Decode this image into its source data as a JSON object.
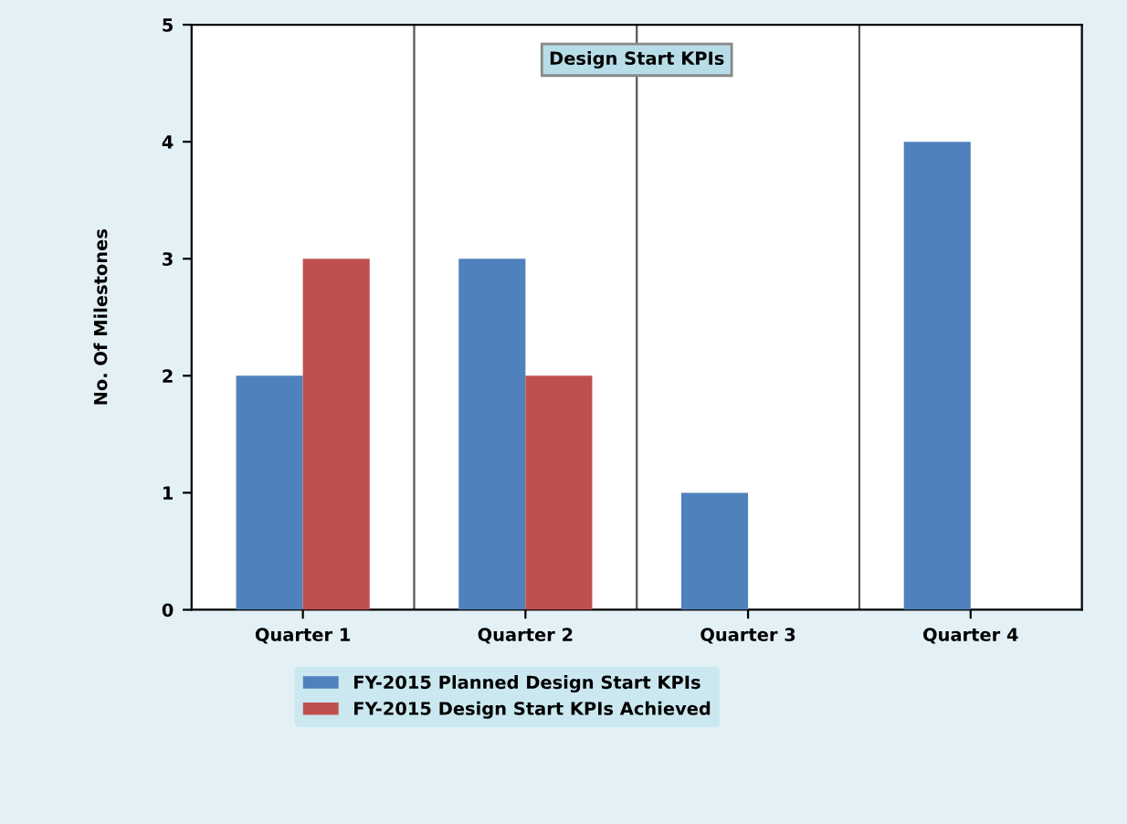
{
  "chart_data": {
    "type": "bar",
    "title": "Design Start KPIs",
    "ylabel": "No. Of Milestones",
    "categories": [
      "Quarter 1",
      "Quarter 2",
      "Quarter 3",
      "Quarter 4"
    ],
    "series": [
      {
        "name": "FY-2015 Planned Design Start KPIs",
        "color": "#4f81bd",
        "values": [
          2,
          3,
          1,
          4
        ]
      },
      {
        "name": "FY-2015 Design Start KPIs Achieved",
        "color": "#c0504d",
        "values": [
          3,
          2,
          null,
          null
        ]
      }
    ],
    "ylim": [
      0,
      5
    ],
    "yticks": [
      0,
      1,
      2,
      3,
      4,
      5
    ],
    "grid": "x",
    "legend": "bottom"
  }
}
